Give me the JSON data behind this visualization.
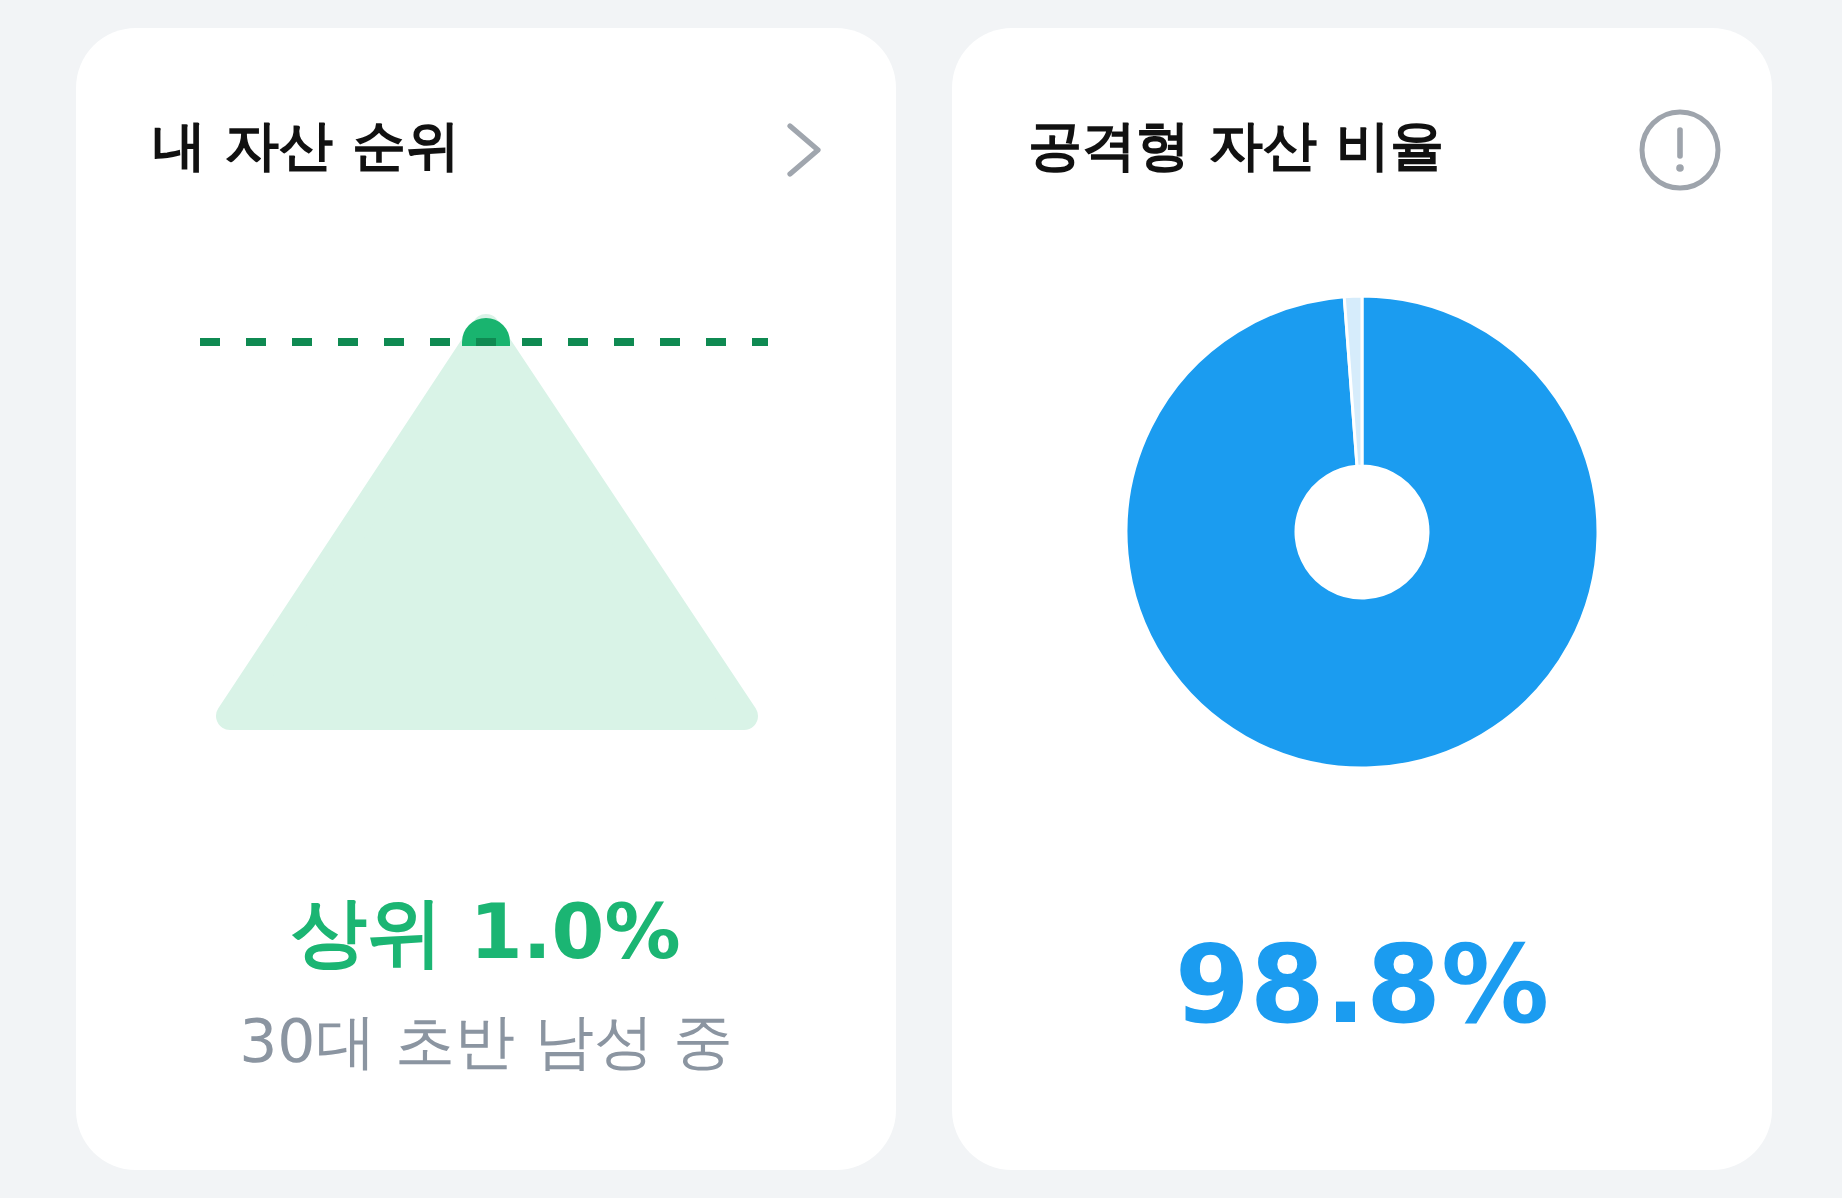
{
  "chart_data": [
    {
      "type": "other",
      "title": "내 자산 순위",
      "annotations": [
        "상위 1.0%",
        "30대 초반 남성 중"
      ]
    },
    {
      "type": "donut",
      "title": "공격형 자산 비율",
      "categories": [
        null,
        null
      ],
      "values": [
        98.8,
        1.2
      ],
      "colors": [
        "#1b9cf0",
        "#d6ecfb"
      ],
      "annotations": [
        "98.8%"
      ]
    }
  ]
}
